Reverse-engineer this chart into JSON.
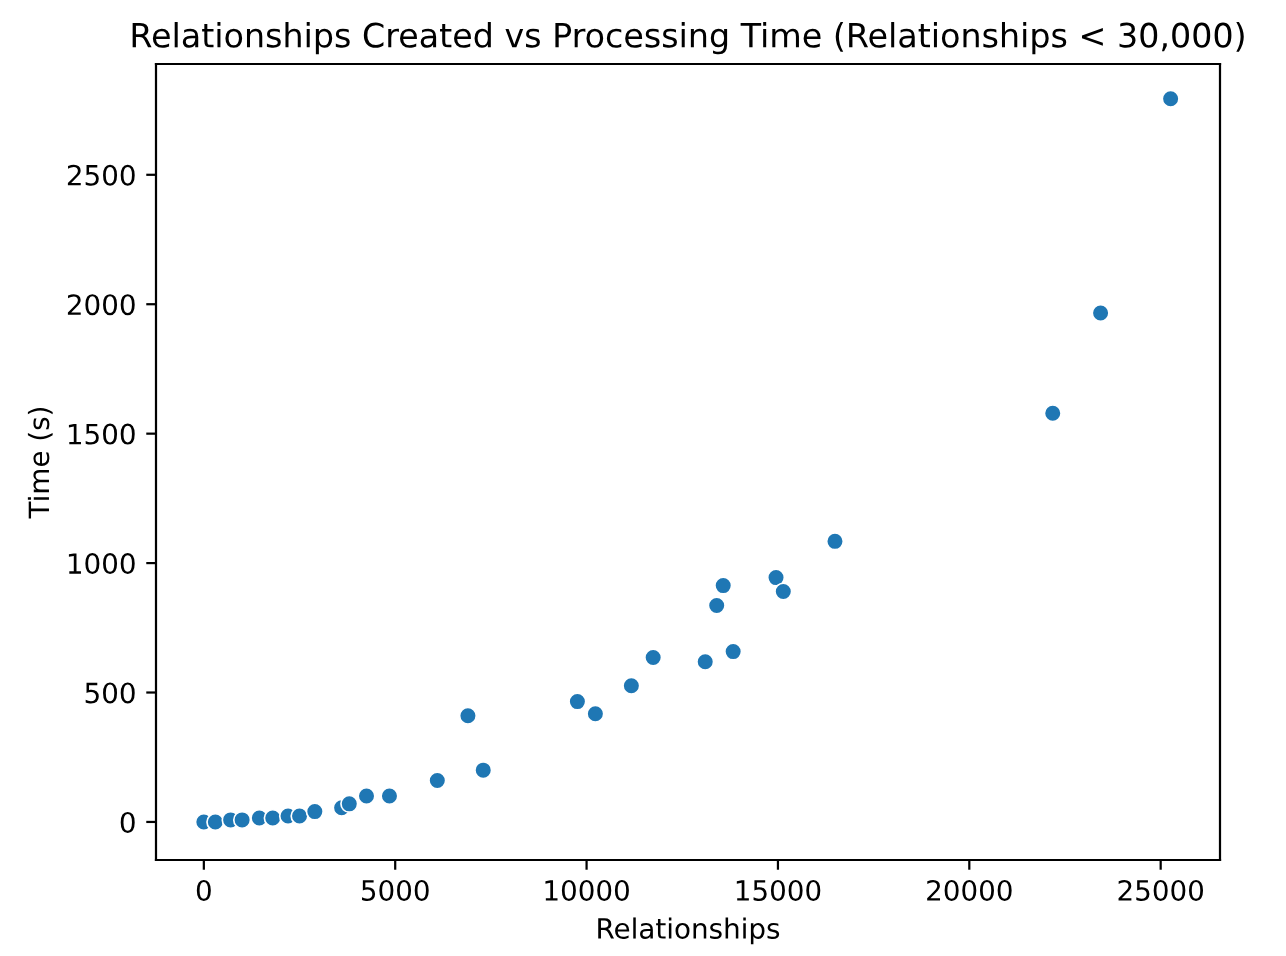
{
  "chart_data": {
    "type": "scatter",
    "title": "Relationships Created vs Processing Time (Relationships < 30,000)",
    "xlabel": "Relationships",
    "ylabel": "Time (s)",
    "x": [
      0,
      300,
      700,
      1000,
      1450,
      1800,
      2200,
      2500,
      2900,
      3600,
      3800,
      4250,
      4850,
      6100,
      6900,
      7300,
      9760,
      10230,
      11170,
      11740,
      13100,
      13400,
      13570,
      13830,
      14950,
      15140,
      16490,
      22180,
      23430,
      25260
    ],
    "series": [
      {
        "color": "#1f77b4",
        "values": [
          0,
          0,
          8,
          8,
          15,
          15,
          23,
          23,
          40,
          55,
          70,
          100,
          100,
          160,
          410,
          200,
          465,
          418,
          526,
          635,
          619,
          836,
          913,
          658,
          944,
          890,
          1084,
          1579,
          1966,
          2794
        ]
      }
    ],
    "xlim": [
      -1250,
      26550
    ],
    "ylim": [
      -147,
      2928
    ],
    "xticks": [
      0,
      5000,
      10000,
      15000,
      20000,
      25000
    ],
    "yticks": [
      0,
      500,
      1000,
      1500,
      2000,
      2500
    ],
    "grid": false,
    "legend": false,
    "marker": "circle"
  }
}
